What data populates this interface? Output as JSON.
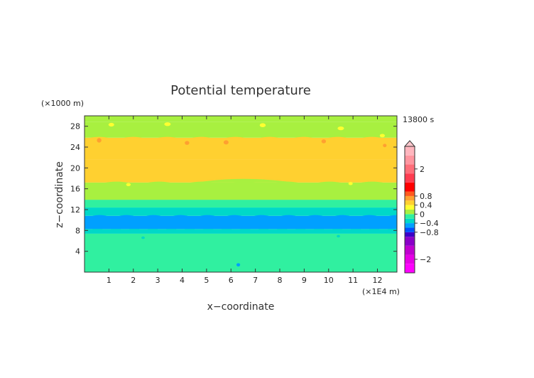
{
  "chart_data": {
    "type": "heatmap",
    "title": "Potential temperature",
    "xlabel": "x−coordinate",
    "ylabel": "z−coordinate",
    "x_unit": "(×1E4 m)",
    "y_unit": "(×1000 m)",
    "time_label": "13800 s",
    "xlim": [
      0,
      12.8
    ],
    "ylim": [
      0,
      30
    ],
    "x_ticks": [
      1,
      2,
      3,
      4,
      5,
      6,
      7,
      8,
      9,
      10,
      11,
      12
    ],
    "y_ticks": [
      4,
      8,
      12,
      16,
      20,
      24,
      28
    ],
    "bands": [
      {
        "z0": 0,
        "z1": 7.4,
        "value": -0.2
      },
      {
        "z0": 7.4,
        "z1": 8.3,
        "value": -0.3
      },
      {
        "z0": 8.3,
        "z1": 10.8,
        "value": -0.6
      },
      {
        "z0": 10.8,
        "z1": 12.4,
        "value": -0.3
      },
      {
        "z0": 12.4,
        "z1": 13.9,
        "value": -0.1
      },
      {
        "z0": 13.9,
        "z1": 17.2,
        "value": 0.1
      },
      {
        "z0": 17.2,
        "z1": 21.6,
        "value": 0.4
      },
      {
        "z0": 21.6,
        "z1": 25.8,
        "value": 0.5
      },
      {
        "z0": 25.8,
        "z1": 28.8,
        "value": 0.1
      },
      {
        "z0": 28.8,
        "z1": 30,
        "value": 0.1
      }
    ],
    "colorbar": {
      "levels": [
        {
          "from": -2.6,
          "to": -2.2,
          "color": "#ff00ff"
        },
        {
          "from": -2.2,
          "to": -1.8,
          "color": "#e600e6"
        },
        {
          "from": -1.8,
          "to": -1.4,
          "color": "#c000d0"
        },
        {
          "from": -1.4,
          "to": -1.0,
          "color": "#8a00c8"
        },
        {
          "from": -1.0,
          "to": -0.8,
          "color": "#3c00c8"
        },
        {
          "from": -0.8,
          "to": -0.6,
          "color": "#0050ff"
        },
        {
          "from": -0.6,
          "to": -0.4,
          "color": "#00a0ff"
        },
        {
          "from": -0.4,
          "to": -0.2,
          "color": "#00d8c8"
        },
        {
          "from": -0.2,
          "to": 0.0,
          "color": "#30f0a0"
        },
        {
          "from": 0.0,
          "to": 0.2,
          "color": "#a8f040"
        },
        {
          "from": 0.2,
          "to": 0.4,
          "color": "#ffff30"
        },
        {
          "from": 0.4,
          "to": 0.6,
          "color": "#ffd030"
        },
        {
          "from": 0.6,
          "to": 0.8,
          "color": "#ffa030"
        },
        {
          "from": 0.8,
          "to": 1.0,
          "color": "#ff5a1e"
        },
        {
          "from": 1.0,
          "to": 1.4,
          "color": "#ff0000"
        },
        {
          "from": 1.4,
          "to": 1.8,
          "color": "#ff3c50"
        },
        {
          "from": 1.8,
          "to": 2.2,
          "color": "#ff6e7a"
        },
        {
          "from": 2.2,
          "to": 2.6,
          "color": "#ff96a0"
        },
        {
          "from": 2.6,
          "to": 3.0,
          "color": "#ffb6be"
        }
      ],
      "range": [
        -2.6,
        3.0
      ],
      "labels": [
        {
          "value": 2,
          "text": "2"
        },
        {
          "value": 0.8,
          "text": "0.8"
        },
        {
          "value": 0.4,
          "text": "0.4"
        },
        {
          "value": 0,
          "text": "0"
        },
        {
          "value": -0.4,
          "text": "−0.4"
        },
        {
          "value": -0.8,
          "text": "−0.8"
        },
        {
          "value": -2,
          "text": "−2"
        }
      ]
    }
  }
}
